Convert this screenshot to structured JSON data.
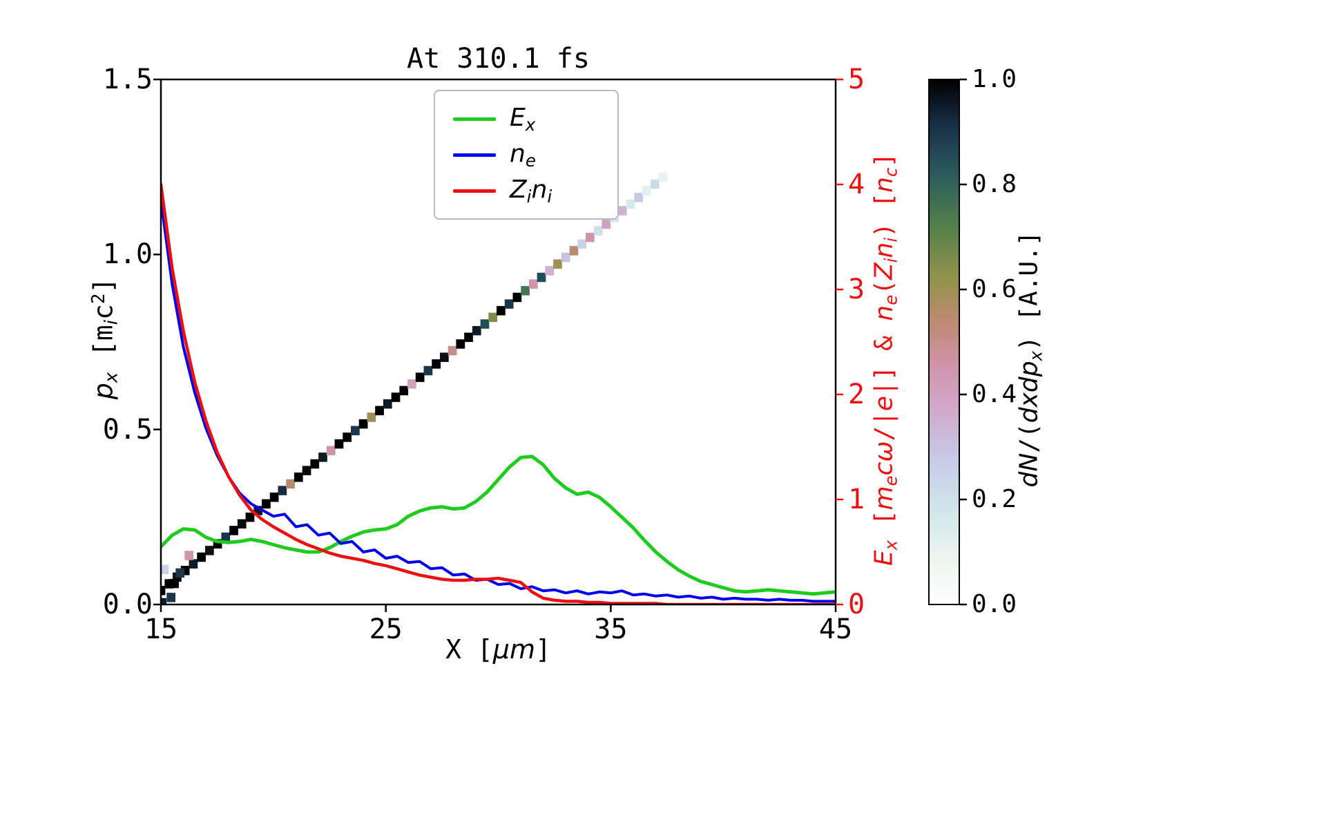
{
  "chart_data": {
    "type": "composite",
    "subtypes": [
      "heatmap",
      "line"
    ],
    "title": "At 310.1 fs",
    "xlabel": "X [μm]",
    "ylabel_left": "p_x [m_i c^2]",
    "ylabel_right": "E_x [m_e cω/|e|] & n_e(Z_i n_i) [n_c]",
    "colorbar_label": "dN/(dxdp_x) [A.U.]",
    "xlim": [
      15,
      45
    ],
    "ylim_left": [
      0.0,
      1.5
    ],
    "ylim_right": [
      0,
      5
    ],
    "grid": false,
    "legend_position": "upper center",
    "x_ticks": [
      "15",
      "25",
      "35",
      "45"
    ],
    "y_ticks_left": [
      "0.0",
      "0.5",
      "1.0",
      "1.5"
    ],
    "y_ticks_right": [
      "0",
      "1",
      "2",
      "3",
      "4",
      "5"
    ],
    "colorbar_ticks": [
      "1.0",
      "0.8",
      "0.6",
      "0.4",
      "0.2",
      "0.0"
    ],
    "colors": {
      "Ex": "#1ecc1e",
      "ne": "#0000ee",
      "Zini": "#ee1010",
      "right_axis": "#ee1010",
      "frame": "#000000"
    },
    "series": [
      {
        "name": "E_x",
        "axis": "right",
        "color": "#1ecc1e",
        "x_start": 15,
        "x_step": 0.5,
        "values": [
          0.55,
          0.66,
          0.72,
          0.71,
          0.64,
          0.6,
          0.59,
          0.6,
          0.62,
          0.6,
          0.57,
          0.54,
          0.52,
          0.5,
          0.5,
          0.54,
          0.6,
          0.65,
          0.69,
          0.71,
          0.72,
          0.76,
          0.84,
          0.89,
          0.92,
          0.93,
          0.91,
          0.92,
          0.98,
          1.07,
          1.19,
          1.31,
          1.4,
          1.41,
          1.33,
          1.2,
          1.11,
          1.05,
          1.07,
          1.02,
          0.93,
          0.83,
          0.73,
          0.61,
          0.5,
          0.41,
          0.33,
          0.27,
          0.22,
          0.19,
          0.16,
          0.13,
          0.12,
          0.13,
          0.14,
          0.13,
          0.12,
          0.11,
          0.1,
          0.11,
          0.12
        ]
      },
      {
        "name": "n_e",
        "axis": "right",
        "color": "#0000ee",
        "x_start": 15,
        "x_step": 0.5,
        "values": [
          3.85,
          3.05,
          2.45,
          2.02,
          1.68,
          1.42,
          1.22,
          1.06,
          0.96,
          0.9,
          0.84,
          0.86,
          0.74,
          0.76,
          0.66,
          0.68,
          0.58,
          0.6,
          0.5,
          0.52,
          0.44,
          0.46,
          0.4,
          0.41,
          0.34,
          0.35,
          0.28,
          0.29,
          0.23,
          0.24,
          0.19,
          0.2,
          0.15,
          0.17,
          0.13,
          0.14,
          0.11,
          0.13,
          0.1,
          0.12,
          0.11,
          0.13,
          0.09,
          0.1,
          0.08,
          0.09,
          0.07,
          0.08,
          0.06,
          0.07,
          0.05,
          0.06,
          0.05,
          0.05,
          0.04,
          0.05,
          0.04,
          0.04,
          0.03,
          0.03,
          0.03
        ]
      },
      {
        "name": "Z_i n_i",
        "axis": "right",
        "color": "#ee1010",
        "x_start": 15,
        "x_step": 0.5,
        "values": [
          4.0,
          3.2,
          2.6,
          2.12,
          1.75,
          1.45,
          1.22,
          1.04,
          0.9,
          0.81,
          0.74,
          0.68,
          0.62,
          0.57,
          0.53,
          0.49,
          0.46,
          0.44,
          0.42,
          0.39,
          0.37,
          0.34,
          0.31,
          0.28,
          0.26,
          0.24,
          0.23,
          0.23,
          0.24,
          0.24,
          0.25,
          0.23,
          0.21,
          0.12,
          0.06,
          0.04,
          0.03,
          0.03,
          0.02,
          0.02,
          0.01,
          0.01,
          0.01,
          0.01,
          0.01,
          0.0,
          0.0,
          0.0,
          0.0,
          0.0,
          0.0,
          0.0,
          0.0,
          0.0,
          0.0,
          0.0,
          0.0,
          0.0,
          0.0,
          0.0,
          0.0
        ]
      }
    ],
    "phase_space": {
      "description": "ion x-px phase space, diagonal band",
      "x0": 15.0,
      "px0": 0.04,
      "x1": 37.32,
      "px1": 1.22,
      "x_step": 0.36,
      "values": [
        1.0,
        1.0,
        0.98,
        1.0,
        0.95,
        1.0,
        0.97,
        1.0,
        0.9,
        1.0,
        0.98,
        1.0,
        0.95,
        1.0,
        1.0,
        0.92,
        0.55,
        1.0,
        0.98,
        1.0,
        0.95,
        0.45,
        1.0,
        1.0,
        0.9,
        1.0,
        0.6,
        1.0,
        0.95,
        1.0,
        1.0,
        0.4,
        1.0,
        0.9,
        1.0,
        0.97,
        0.5,
        1.0,
        1.0,
        0.95,
        0.85,
        0.65,
        1.0,
        0.9,
        1.0,
        0.75,
        0.45,
        0.85,
        0.35,
        0.6,
        0.3,
        0.55,
        0.25,
        0.45,
        0.2,
        0.4,
        0.18,
        0.35,
        0.15,
        0.28,
        0.12,
        0.22,
        0.1
      ],
      "extra_cells": [
        {
          "x": 15.05,
          "px": 0.005,
          "v": 0.95
        },
        {
          "x": 15.45,
          "px": 0.02,
          "v": 0.9
        },
        {
          "x": 15.15,
          "px": 0.1,
          "v": 0.25
        },
        {
          "x": 15.85,
          "px": 0.09,
          "v": 0.9
        },
        {
          "x": 16.25,
          "px": 0.14,
          "v": 0.45
        },
        {
          "x": 15.6,
          "px": 0.06,
          "v": 1.0
        }
      ]
    },
    "colormap_stops": [
      [
        0.0,
        "#ffffff"
      ],
      [
        0.08,
        "#eef6f0"
      ],
      [
        0.18,
        "#cfe6ea"
      ],
      [
        0.28,
        "#c7c9e6"
      ],
      [
        0.38,
        "#d2a6c8"
      ],
      [
        0.46,
        "#cf93a8"
      ],
      [
        0.54,
        "#bd8a70"
      ],
      [
        0.62,
        "#93934c"
      ],
      [
        0.72,
        "#53804a"
      ],
      [
        0.82,
        "#2b5b5e"
      ],
      [
        0.91,
        "#1a3148"
      ],
      [
        1.0,
        "#000000"
      ]
    ]
  },
  "labels": {
    "title": "At 310.1 fs",
    "xlabel": [
      {
        "t": "X [",
        "i": 0
      },
      {
        "t": "μm",
        "i": 1
      },
      {
        "t": "]",
        "i": 0
      }
    ],
    "ylabel_left": [
      {
        "t": "p",
        "i": 1
      },
      {
        "t": "x",
        "i": 1,
        "sub": 1
      },
      {
        "t": " [m",
        "i": 0
      },
      {
        "t": "i",
        "i": 1,
        "sub": 1
      },
      {
        "t": "c",
        "i": 0
      },
      {
        "t": "2",
        "i": 0,
        "sup": 1
      },
      {
        "t": "]",
        "i": 0
      }
    ],
    "ylabel_right": [
      {
        "t": "E",
        "i": 1
      },
      {
        "t": "x",
        "i": 1,
        "sub": 1
      },
      {
        "t": " [",
        "i": 0
      },
      {
        "t": "m",
        "i": 1
      },
      {
        "t": "e",
        "i": 1,
        "sub": 1
      },
      {
        "t": "cω",
        "i": 1
      },
      {
        "t": "/|",
        "i": 0
      },
      {
        "t": "e",
        "i": 1
      },
      {
        "t": "|] & ",
        "i": 0
      },
      {
        "t": "n",
        "i": 1
      },
      {
        "t": "e",
        "i": 1,
        "sub": 1
      },
      {
        "t": "(",
        "i": 0
      },
      {
        "t": "Z",
        "i": 1
      },
      {
        "t": "i",
        "i": 1,
        "sub": 1
      },
      {
        "t": "n",
        "i": 1
      },
      {
        "t": "i",
        "i": 1,
        "sub": 1
      },
      {
        "t": ") [",
        "i": 0
      },
      {
        "t": "n",
        "i": 1
      },
      {
        "t": "c",
        "i": 1,
        "sub": 1
      },
      {
        "t": "]",
        "i": 0
      }
    ],
    "colorbar_label": [
      {
        "t": "dN",
        "i": 1
      },
      {
        "t": "/(",
        "i": 0
      },
      {
        "t": "dxdp",
        "i": 1
      },
      {
        "t": "x",
        "i": 1,
        "sub": 1
      },
      {
        "t": ") [A.U.]",
        "i": 0
      }
    ]
  },
  "legend": {
    "items": [
      {
        "color": "#1ecc1e",
        "label": [
          {
            "t": "E",
            "i": 1
          },
          {
            "t": "x",
            "i": 1,
            "sub": 1
          }
        ]
      },
      {
        "color": "#0000ee",
        "label": [
          {
            "t": "n",
            "i": 1
          },
          {
            "t": "e",
            "i": 1,
            "sub": 1
          }
        ]
      },
      {
        "color": "#ee1010",
        "label": [
          {
            "t": "Z",
            "i": 1
          },
          {
            "t": "i",
            "i": 1,
            "sub": 1
          },
          {
            "t": "n",
            "i": 1
          },
          {
            "t": "i",
            "i": 1,
            "sub": 1
          }
        ]
      }
    ]
  }
}
